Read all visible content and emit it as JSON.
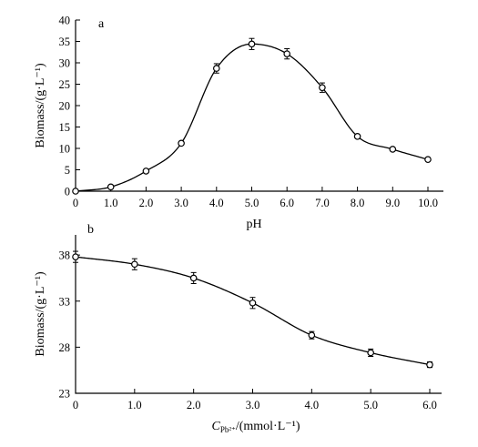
{
  "chart_data": [
    {
      "type": "line",
      "panel_label": "a",
      "xlabel": "pH",
      "ylabel": "Biomass/(g·L⁻¹)",
      "xlim": [
        0,
        10
      ],
      "ylim": [
        0,
        40
      ],
      "x_ticks": [
        "0",
        "1.0",
        "2.0",
        "3.0",
        "4.0",
        "5.0",
        "6.0",
        "7.0",
        "8.0",
        "9.0",
        "10.0"
      ],
      "y_ticks": [
        "0",
        "5",
        "10",
        "15",
        "20",
        "25",
        "30",
        "35",
        "40"
      ],
      "grid": false,
      "markers": "open-circle",
      "error_bars": true,
      "series": [
        {
          "x": [
            0,
            1,
            2,
            3,
            4,
            5,
            6,
            7,
            8,
            9,
            10
          ],
          "y": [
            0,
            1,
            4.7,
            11.2,
            28.7,
            34.4,
            32.1,
            24.2,
            12.8,
            9.8,
            7.4
          ],
          "error": [
            0,
            0,
            0,
            0,
            1.1,
            1.3,
            1.2,
            1.1,
            0,
            0,
            0
          ]
        }
      ]
    },
    {
      "type": "line",
      "panel_label": "b",
      "xlabel_main": "C",
      "xlabel_sub": "Pb²⁺",
      "xlabel_rest": "/(mmol·L⁻¹)",
      "ylabel": "Biomass/(g·L⁻¹)",
      "xlim": [
        0,
        6
      ],
      "ylim": [
        23,
        39
      ],
      "x_ticks": [
        "0",
        "1.0",
        "2.0",
        "3.0",
        "4.0",
        "5.0",
        "6.0"
      ],
      "y_ticks": [
        "23",
        "28",
        "33",
        "38"
      ],
      "grid": false,
      "markers": "open-circle",
      "error_bars": true,
      "series": [
        {
          "x": [
            0,
            1,
            2,
            3,
            4,
            5,
            6
          ],
          "y": [
            37.8,
            37.0,
            35.5,
            32.8,
            29.3,
            27.4,
            26.1
          ],
          "error": [
            0.6,
            0.6,
            0.6,
            0.6,
            0.4,
            0.4,
            0.3
          ]
        }
      ]
    }
  ]
}
